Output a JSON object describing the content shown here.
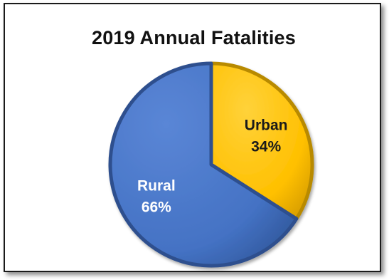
{
  "chart_data": {
    "type": "pie",
    "title": "2019 Annual Fatalities",
    "slices": [
      {
        "name": "Urban",
        "value": 34,
        "label": "34%",
        "color": "#ffc000"
      },
      {
        "name": "Rural",
        "value": 66,
        "label": "66%",
        "color": "#4472c4"
      }
    ],
    "start_angle_deg": 0,
    "legend": "none",
    "data_labels": "inside"
  }
}
